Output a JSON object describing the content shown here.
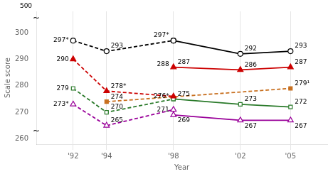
{
  "chart_data": {
    "type": "line",
    "xlabel": "Year",
    "ylabel": "Scale score",
    "xlim": [
      1989.8,
      2007.2
    ],
    "xticks": [
      {
        "value": 1992,
        "label": "'92"
      },
      {
        "value": 1994,
        "label": "'94"
      },
      {
        "value": 1998,
        "label": "'98"
      },
      {
        "value": 2002,
        "label": "'02"
      },
      {
        "value": 2005,
        "label": "'05"
      }
    ],
    "ylim": [
      258,
      308
    ],
    "yticks": [
      260,
      270,
      280,
      290,
      300
    ],
    "grid": "x",
    "data_labels": true,
    "series": [
      {
        "x": [
          1992,
          1994,
          1998
        ],
        "values": [
          297,
          293,
          297
        ],
        "color": "#000000",
        "line_style": "dashed",
        "marker": "circle_open",
        "value_labels": [
          "297*",
          "293",
          "297*"
        ]
      },
      {
        "x": [
          1998,
          2002,
          2005
        ],
        "values": [
          297,
          292,
          293
        ],
        "color": "#000000",
        "line_style": "solid",
        "marker": "circle_open",
        "value_labels": [
          null,
          "292",
          "293"
        ]
      },
      {
        "x": [
          1992,
          1994,
          1998
        ],
        "values": [
          290,
          278,
          276
        ],
        "color": "#cc0000",
        "line_style": "dashed",
        "marker": "triangle",
        "value_labels": [
          "290",
          "278*",
          "276*"
        ]
      },
      {
        "x": [
          1998,
          2002,
          2005
        ],
        "values": [
          287,
          286,
          287
        ],
        "color": "#cc0000",
        "line_style": "solid",
        "marker": "triangle",
        "value_labels": [
          "287",
          "286",
          "287"
        ]
      },
      {
        "x": [
          1992,
          1994,
          1998
        ],
        "values": [
          279,
          270,
          275
        ],
        "color": "#2a7a2a",
        "line_style": "dashed",
        "marker": "square_open",
        "value_labels": [
          "279",
          "270",
          "275"
        ]
      },
      {
        "x": [
          1998,
          2002,
          2005
        ],
        "values": [
          275,
          273,
          272
        ],
        "color": "#2a7a2a",
        "line_style": "solid",
        "marker": "square_open",
        "value_labels": [
          null,
          "273",
          "272"
        ]
      },
      {
        "x": [
          1992,
          1994,
          1998
        ],
        "values": [
          273,
          265,
          271
        ],
        "color": "#990099",
        "line_style": "dashed",
        "marker": "triangle_open",
        "value_labels": [
          "273*",
          "265",
          "271"
        ]
      },
      {
        "x": [
          1998,
          2002,
          2005
        ],
        "values": [
          269,
          267,
          267
        ],
        "color": "#990099",
        "line_style": "solid",
        "marker": "triangle_open",
        "value_labels": [
          "269",
          "267",
          "267"
        ]
      },
      {
        "x": [
          1994,
          2005
        ],
        "values": [
          274,
          279
        ],
        "color": "#c87020",
        "line_style": "dashed",
        "marker": "square",
        "value_labels": [
          "274",
          "279¹"
        ]
      }
    ],
    "annotations": [
      {
        "text": "500"
      },
      {
        "text": "~"
      },
      {
        "text": "~"
      },
      {
        "text": "288",
        "x": 1998,
        "y": 288
      }
    ]
  }
}
